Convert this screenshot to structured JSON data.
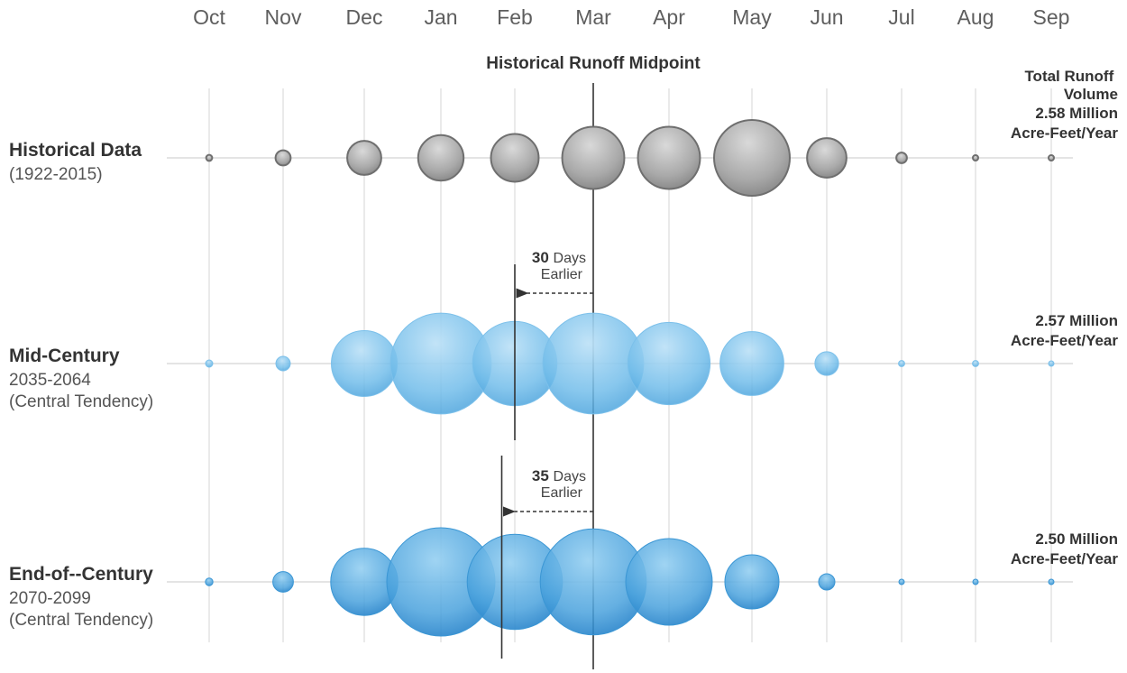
{
  "chart_data": {
    "type": "bubble",
    "title": "Historical Runoff Midpoint",
    "categories": [
      "Oct",
      "Nov",
      "Dec",
      "Jan",
      "Feb",
      "Mar",
      "Apr",
      "May",
      "Jun",
      "Jul",
      "Aug",
      "Sep"
    ],
    "volume_header": "Total Runoff Volume",
    "series": [
      {
        "name": "Historical Data",
        "period": "(1922-2015)",
        "note": "",
        "total": "2.58 Million Acre-Feet/Year",
        "color": "#a8a8a8",
        "relative_size": [
          0.08,
          0.2,
          0.45,
          0.6,
          0.63,
          0.82,
          0.82,
          1.0,
          0.52,
          0.14,
          0.05,
          0.04
        ],
        "midpoint_month": "Mar"
      },
      {
        "name": "Mid-Century",
        "period": "2035-2064",
        "note": "(Central Tendency)",
        "total": "2.57 Million Acre-Feet/Year",
        "color": "#5aaee0",
        "relative_size": [
          0.07,
          0.14,
          0.64,
          0.98,
          0.82,
          0.98,
          0.8,
          0.62,
          0.23,
          0.06,
          0.06,
          0.05
        ],
        "shift_days": "30",
        "shift_label": "Days Earlier"
      },
      {
        "name": "End-of--Century",
        "period": "2070-2099",
        "note": "(Central Tendency)",
        "total": "2.50 Million Acre-Feet/Year",
        "color": "#3d9ad8",
        "relative_size": [
          0.07,
          0.19,
          0.62,
          1.0,
          0.88,
          0.98,
          0.8,
          0.5,
          0.15,
          0.05,
          0.05,
          0.05
        ],
        "shift_days": "35",
        "shift_label": "Days Earlier"
      }
    ],
    "shift_days_per_month": 30
  }
}
